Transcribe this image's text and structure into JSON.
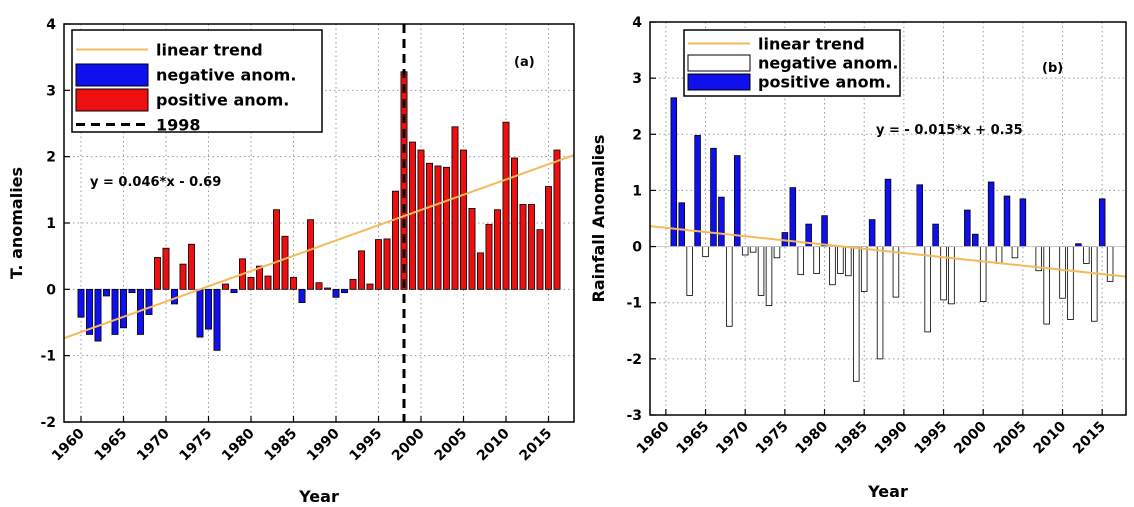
{
  "chart_data": [
    {
      "type": "bar",
      "panel_label": "(a)",
      "ylabel": "T. anomalies",
      "xlabel": "Year",
      "ylim": [
        -2,
        4
      ],
      "xlim": [
        1958,
        2018
      ],
      "yticks": [
        -2,
        -1,
        0,
        1,
        2,
        3,
        4
      ],
      "xticks": [
        1960,
        1965,
        1970,
        1975,
        1980,
        1985,
        1990,
        1995,
        2000,
        2005,
        2010,
        2015
      ],
      "grid": true,
      "legend": {
        "placement": "top-left",
        "entries": [
          "linear trend",
          "negative anom.",
          "positive anom.",
          "1998"
        ]
      },
      "equation": "y = 0.046*x - 0.69",
      "colors": {
        "negative": "#1010ee",
        "positive": "#ee1010",
        "trend": "#f5b95a",
        "vline": "#000000"
      },
      "years": [
        1960,
        1961,
        1962,
        1963,
        1964,
        1965,
        1966,
        1967,
        1968,
        1969,
        1970,
        1971,
        1972,
        1973,
        1974,
        1975,
        1976,
        1977,
        1978,
        1979,
        1980,
        1981,
        1982,
        1983,
        1984,
        1985,
        1986,
        1987,
        1988,
        1989,
        1990,
        1991,
        1992,
        1993,
        1994,
        1995,
        1996,
        1997,
        1998,
        1999,
        2000,
        2001,
        2002,
        2003,
        2004,
        2005,
        2006,
        2007,
        2008,
        2009,
        2010,
        2011,
        2012,
        2013,
        2014,
        2015,
        2016
      ],
      "values": [
        -0.42,
        -0.68,
        -0.78,
        -0.1,
        -0.68,
        -0.58,
        -0.05,
        -0.68,
        -0.38,
        0.48,
        0.62,
        -0.22,
        0.38,
        0.68,
        -0.72,
        -0.6,
        -0.92,
        0.08,
        -0.05,
        0.46,
        0.18,
        0.35,
        0.2,
        1.2,
        0.8,
        0.18,
        -0.2,
        1.05,
        0.1,
        0.02,
        -0.12,
        -0.05,
        0.15,
        0.58,
        0.08,
        0.75,
        0.76,
        1.48,
        3.28,
        2.22,
        2.1,
        1.9,
        1.86,
        1.84,
        2.45,
        2.1,
        1.22,
        0.55,
        0.98,
        1.2,
        2.52,
        1.98,
        1.28,
        1.28,
        0.9,
        1.55,
        2.1
      ],
      "trend": {
        "slope": 0.046,
        "intercept": -0.69,
        "x0": 1960
      },
      "vline_year": 1998
    },
    {
      "type": "bar",
      "panel_label": "(b)",
      "ylabel": "Rainfall Anomalies",
      "xlabel": "Year",
      "ylim": [
        -3,
        4
      ],
      "xlim": [
        1958,
        2018
      ],
      "yticks": [
        -3,
        -2,
        -1,
        0,
        1,
        2,
        3,
        4
      ],
      "xticks": [
        1960,
        1965,
        1970,
        1975,
        1980,
        1985,
        1990,
        1995,
        2000,
        2005,
        2010,
        2015
      ],
      "grid": true,
      "legend": {
        "placement": "top-center",
        "entries": [
          "linear trend",
          "negative anom.",
          "positive anom."
        ]
      },
      "equation": "y = - 0.015*x + 0.35",
      "colors": {
        "negative": "#ffffff",
        "positive": "#1010ee",
        "trend": "#f5b95a"
      },
      "years": [
        1960,
        1961,
        1962,
        1963,
        1964,
        1965,
        1966,
        1967,
        1968,
        1969,
        1970,
        1971,
        1972,
        1973,
        1974,
        1975,
        1976,
        1977,
        1978,
        1979,
        1980,
        1981,
        1982,
        1983,
        1984,
        1985,
        1986,
        1987,
        1988,
        1989,
        1990,
        1991,
        1992,
        1993,
        1994,
        1995,
        1996,
        1997,
        1998,
        1999,
        2000,
        2001,
        2002,
        2003,
        2004,
        2005,
        2006,
        2007,
        2008,
        2009,
        2010,
        2011,
        2012,
        2013,
        2014,
        2015,
        2016
      ],
      "values": [
        0.0,
        2.65,
        0.78,
        -0.87,
        1.98,
        -0.18,
        1.75,
        0.88,
        -1.42,
        1.62,
        -0.15,
        -0.1,
        -0.87,
        -1.05,
        -0.2,
        0.25,
        1.05,
        -0.5,
        0.4,
        -0.48,
        0.55,
        -0.68,
        -0.48,
        -0.52,
        -2.4,
        -0.8,
        0.48,
        -2.0,
        1.2,
        -0.9,
        0.0,
        0.0,
        1.1,
        -1.52,
        0.4,
        -0.95,
        -1.02,
        0.0,
        0.65,
        0.22,
        -0.98,
        1.15,
        -0.3,
        0.9,
        -0.2,
        0.85,
        0.0,
        -0.43,
        -1.38,
        0.0,
        -0.92,
        -1.3,
        0.05,
        -0.3,
        -1.33,
        0.85,
        -0.62
      ],
      "trend": {
        "slope": -0.015,
        "intercept": 0.35,
        "x0": 1960
      }
    }
  ]
}
